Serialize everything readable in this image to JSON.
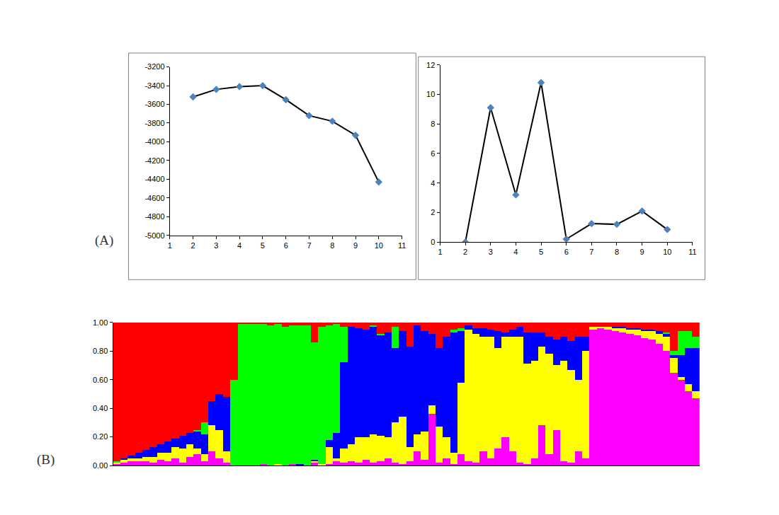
{
  "chart_data": [
    {
      "type": "line",
      "annotations": [
        {
          "text": "(A)"
        }
      ],
      "x": [
        2,
        3,
        4,
        5,
        6,
        7,
        8,
        9,
        10
      ],
      "series": [
        {
          "color": "#4f81bd",
          "marker": "diamond",
          "values": [
            -3520,
            -3440,
            -3410,
            -3400,
            -3550,
            -3720,
            -3780,
            -3930,
            -4430
          ]
        }
      ],
      "xlim": [
        1,
        11
      ],
      "xticks": [
        1,
        2,
        3,
        4,
        5,
        6,
        7,
        8,
        9,
        10,
        11
      ],
      "ylim": [
        -5000,
        -3200
      ],
      "yticks": [
        -5000,
        -4800,
        -4600,
        -4400,
        -4200,
        -4000,
        -3800,
        -3600,
        -3400,
        -3200
      ],
      "grid": false
    },
    {
      "type": "line",
      "x": [
        2,
        3,
        4,
        5,
        6,
        7,
        8,
        9,
        10
      ],
      "series": [
        {
          "color": "#4f81bd",
          "marker": "diamond",
          "values": [
            0,
            9.1,
            3.2,
            10.8,
            0.2,
            1.25,
            1.2,
            2.1,
            0.85
          ]
        }
      ],
      "xlim": [
        1,
        11
      ],
      "xticks": [
        1,
        2,
        3,
        4,
        5,
        6,
        7,
        8,
        9,
        10,
        11
      ],
      "ylim": [
        0,
        12
      ],
      "yticks": [
        0,
        2,
        4,
        6,
        8,
        10,
        12
      ],
      "grid": false
    },
    {
      "type": "bar",
      "stacked": true,
      "tick_labels": "y",
      "grid": false,
      "annotations": [
        {
          "text": "(B)"
        }
      ],
      "categories": [
        null,
        null,
        null,
        null,
        null,
        null,
        null,
        null,
        null,
        null,
        null,
        null,
        null,
        null,
        null,
        null,
        null,
        null,
        null,
        null,
        null,
        null,
        null,
        null,
        null,
        null,
        null,
        null,
        null,
        null,
        null,
        null,
        null,
        null,
        null,
        null,
        null,
        null,
        null,
        null,
        null,
        null,
        null,
        null,
        null,
        null,
        null,
        null,
        null,
        null,
        null,
        null,
        null,
        null,
        null,
        null,
        null,
        null,
        null,
        null,
        null,
        null,
        null,
        null,
        null,
        null,
        null,
        null,
        null,
        null,
        null,
        null,
        null,
        null,
        null,
        null,
        null,
        null,
        null,
        null
      ],
      "series": [
        {
          "color": "#ff00ff",
          "values": [
            0.01,
            0.02,
            0.03,
            0.03,
            0.03,
            0.02,
            0.04,
            0.03,
            0.05,
            0.02,
            0.06,
            0.08,
            0.03,
            0.1,
            0.05,
            0.02,
            0.0,
            0,
            0,
            0,
            0.01,
            0,
            0,
            0,
            0.01,
            0,
            0,
            0.02,
            0,
            0.01,
            0.03,
            0.02,
            0.03,
            0.02,
            0.04,
            0.02,
            0.03,
            0.05,
            0.02,
            0.01,
            0.03,
            0.1,
            0.04,
            0.36,
            0.02,
            0.05,
            0.01,
            0.08,
            0.03,
            0.02,
            0.1,
            0.05,
            0.12,
            0.2,
            0.1,
            0.02,
            0.01,
            0.05,
            0.28,
            0.08,
            0.25,
            0.03,
            0.02,
            0.1,
            0.05,
            0.95,
            0.96,
            0.95,
            0.94,
            0.93,
            0.92,
            0.91,
            0.89,
            0.88,
            0.85,
            0.8,
            0.65,
            0.6,
            0.52,
            0.47
          ]
        },
        {
          "color": "#ffff00",
          "values": [
            0.01,
            0.02,
            0.02,
            0.02,
            0.03,
            0.04,
            0.05,
            0.06,
            0.08,
            0.1,
            0.09,
            0.04,
            0.05,
            0.18,
            0.2,
            0.08,
            0.0,
            0,
            0,
            0,
            0,
            0,
            0.01,
            0,
            0,
            0,
            0,
            0.01,
            0.01,
            0.12,
            0.02,
            0.1,
            0.12,
            0.18,
            0.16,
            0.2,
            0.18,
            0.15,
            0.28,
            0.33,
            0.1,
            0.12,
            0.2,
            0.06,
            0.25,
            0.15,
            0.08,
            0.5,
            0.92,
            0.9,
            0.8,
            0.85,
            0.7,
            0.7,
            0.8,
            0.88,
            0.7,
            0.68,
            0.55,
            0.7,
            0.45,
            0.7,
            0.65,
            0.5,
            0.75,
            0.02,
            0.01,
            0.02,
            0.02,
            0.03,
            0.03,
            0.04,
            0.05,
            0.06,
            0.07,
            0.1,
            0.1,
            0.02,
            0.05,
            0.05
          ]
        },
        {
          "color": "#0000ff",
          "values": [
            0.0,
            0.01,
            0.02,
            0.04,
            0.05,
            0.07,
            0.06,
            0.08,
            0.06,
            0.09,
            0.08,
            0.12,
            0.14,
            0.17,
            0.25,
            0.38,
            0.0,
            0,
            0,
            0,
            0,
            0,
            0,
            0,
            0,
            0.01,
            0,
            0.01,
            0,
            0.05,
            0.18,
            0.6,
            0.82,
            0.76,
            0.75,
            0.75,
            0.7,
            0.73,
            0.52,
            0.6,
            0.7,
            0.76,
            0.7,
            0.5,
            0.55,
            0.7,
            0.84,
            0.36,
            0.03,
            0.04,
            0.06,
            0.05,
            0.12,
            0.03,
            0.05,
            0.07,
            0.22,
            0.2,
            0.1,
            0.12,
            0.18,
            0.17,
            0.2,
            0.3,
            0.1,
            0,
            0,
            0,
            0.01,
            0.01,
            0.01,
            0.01,
            0.01,
            0.01,
            0.02,
            0.02,
            0.02,
            0.15,
            0.25,
            0.3
          ]
        },
        {
          "color": "#00ff00",
          "values": [
            0.01,
            0,
            0,
            0,
            0,
            0,
            0,
            0,
            0,
            0,
            0,
            0.01,
            0.08,
            0,
            0,
            0,
            0.6,
            0.99,
            0.99,
            0.99,
            0.98,
            0.98,
            0.98,
            0.97,
            0.97,
            0.97,
            0.98,
            0.82,
            0.96,
            0.8,
            0.76,
            0.25,
            0,
            0,
            0,
            0.01,
            0.01,
            0,
            0.15,
            0,
            0,
            0,
            0,
            0,
            0,
            0,
            0.02,
            0.02,
            0,
            0,
            0,
            0,
            0,
            0,
            0,
            0,
            0,
            0,
            0,
            0,
            0,
            0,
            0,
            0,
            0,
            0,
            0,
            0,
            0,
            0,
            0,
            0,
            0,
            0,
            0,
            0.01,
            0.03,
            0.17,
            0.12,
            0.08
          ]
        },
        {
          "color": "#ff0000",
          "values": [
            0.97,
            0.95,
            0.93,
            0.91,
            0.89,
            0.87,
            0.85,
            0.83,
            0.81,
            0.79,
            0.77,
            0.75,
            0.7,
            0.55,
            0.5,
            0.52,
            0.4,
            0.01,
            0.01,
            0.01,
            0.01,
            0.02,
            0.01,
            0.03,
            0.02,
            0.02,
            0.02,
            0.14,
            0.03,
            0.02,
            0.01,
            0.03,
            0.03,
            0.04,
            0.05,
            0.02,
            0.08,
            0.07,
            0.03,
            0.06,
            0.17,
            0.02,
            0.06,
            0.08,
            0.18,
            0.1,
            0.05,
            0.04,
            0.02,
            0.04,
            0.04,
            0.05,
            0.06,
            0.07,
            0.05,
            0.03,
            0.07,
            0.07,
            0.07,
            0.1,
            0.12,
            0.1,
            0.13,
            0.1,
            0.1,
            0.03,
            0.03,
            0.03,
            0.03,
            0.03,
            0.04,
            0.04,
            0.05,
            0.05,
            0.06,
            0.07,
            0.2,
            0.06,
            0.06,
            0.1
          ]
        }
      ],
      "ylim": [
        0,
        1
      ],
      "yticks": [
        {
          "value": 0,
          "label": "0.00"
        },
        {
          "value": 0.2,
          "label": "0.20"
        },
        {
          "value": 0.4,
          "label": "0.40"
        },
        {
          "value": 0.6,
          "label": "0.60"
        },
        {
          "value": 0.8,
          "label": "0.80"
        },
        {
          "value": 1,
          "label": "1.00"
        }
      ]
    }
  ]
}
